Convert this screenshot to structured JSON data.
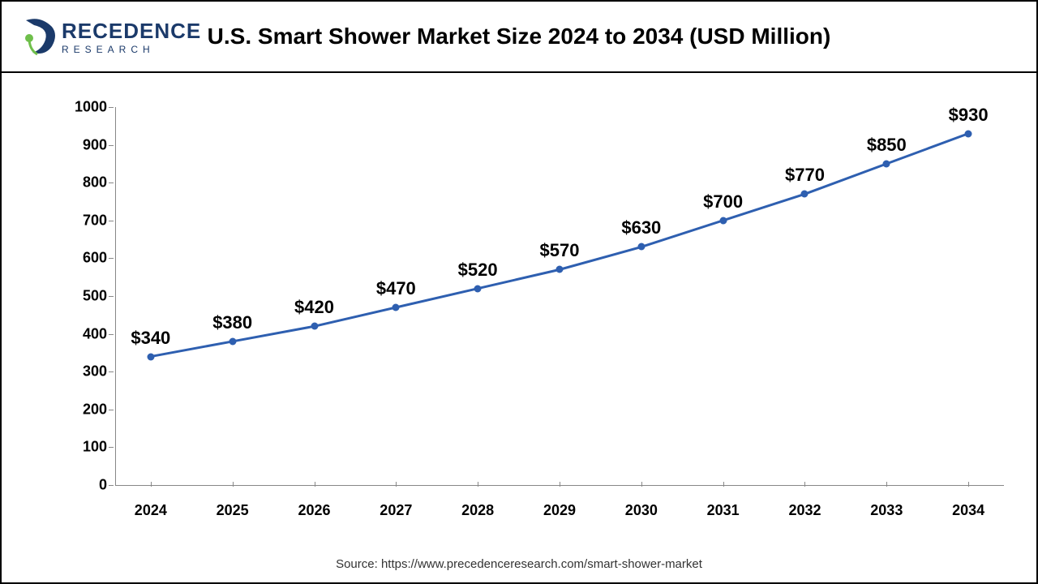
{
  "logo": {
    "brand_top": "RECEDENCE",
    "brand_bottom": "RESEARCH",
    "mark_fill": "#1b3a6a",
    "mark_accent": "#6fbf4b"
  },
  "chart": {
    "type": "line",
    "title": "U.S. Smart Shower Market Size 2024 to 2034 (USD Million)",
    "title_fontsize": 28,
    "background_color": "#ffffff",
    "border_color": "#000000",
    "axis_color": "#888888",
    "line_color": "#2e5fb0",
    "marker_color": "#2e5fb0",
    "line_width": 3,
    "marker_size": 9,
    "label_fontsize": 22,
    "axis_label_fontsize": 18,
    "ylim": [
      0,
      1000
    ],
    "ytick_step": 100,
    "categories": [
      "2024",
      "2025",
      "2026",
      "2027",
      "2028",
      "2029",
      "2030",
      "2031",
      "2032",
      "2033",
      "2034"
    ],
    "values": [
      340,
      380,
      420,
      470,
      520,
      570,
      630,
      700,
      770,
      850,
      930
    ],
    "value_labels": [
      "$340",
      "$380",
      "$420",
      "$470",
      "$520",
      "$570",
      "$630",
      "$700",
      "$770",
      "$850",
      "$930"
    ]
  },
  "source": "Source: https://www.precedenceresearch.com/smart-shower-market"
}
